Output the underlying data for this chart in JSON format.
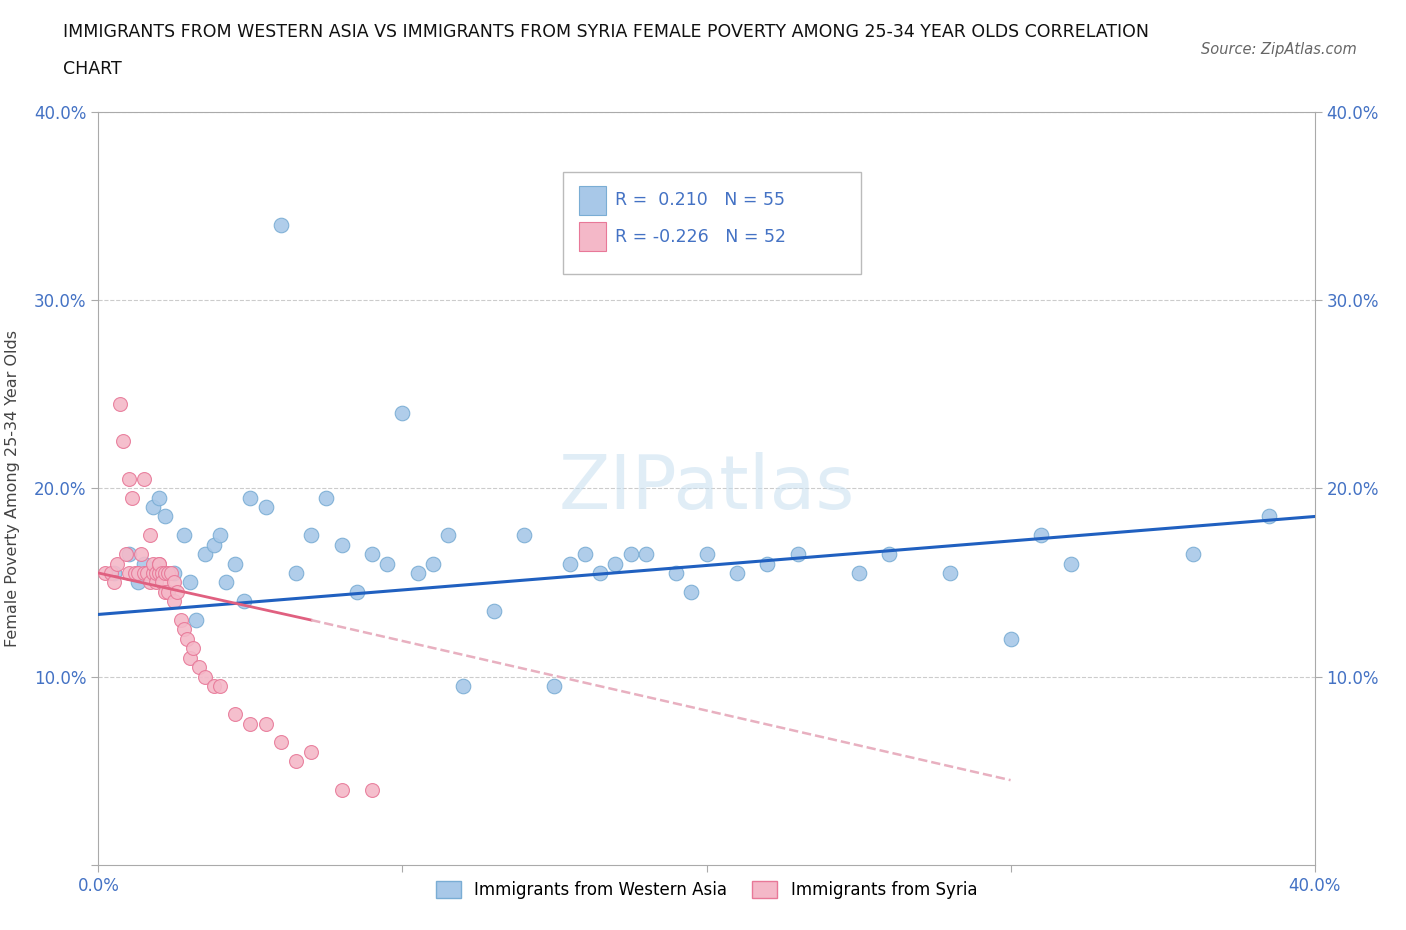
{
  "title_line1": "IMMIGRANTS FROM WESTERN ASIA VS IMMIGRANTS FROM SYRIA FEMALE POVERTY AMONG 25-34 YEAR OLDS CORRELATION",
  "title_line2": "CHART",
  "source": "Source: ZipAtlas.com",
  "ylabel": "Female Poverty Among 25-34 Year Olds",
  "xlim": [
    0.0,
    0.4
  ],
  "ylim": [
    0.0,
    0.4
  ],
  "grid_color": "#cccccc",
  "background_color": "#ffffff",
  "western_asia_color": "#a8c8e8",
  "western_asia_edge": "#7aadd4",
  "syria_color": "#f4b8c8",
  "syria_edge": "#e87898",
  "R_western": 0.21,
  "N_western": 55,
  "R_syria": -0.226,
  "N_syria": 52,
  "trend_blue": "#2060c0",
  "trend_pink_solid": "#e06080",
  "trend_pink_dash": "#e8b0c0",
  "axis_color": "#4472c4",
  "tick_label_color": "#4472c4",
  "wa_x": [
    0.005,
    0.01,
    0.013,
    0.015,
    0.018,
    0.02,
    0.022,
    0.025,
    0.028,
    0.03,
    0.032,
    0.035,
    0.038,
    0.04,
    0.042,
    0.045,
    0.048,
    0.05,
    0.055,
    0.06,
    0.065,
    0.07,
    0.075,
    0.08,
    0.085,
    0.09,
    0.095,
    0.1,
    0.105,
    0.11,
    0.115,
    0.12,
    0.13,
    0.14,
    0.15,
    0.155,
    0.16,
    0.165,
    0.17,
    0.175,
    0.18,
    0.19,
    0.195,
    0.2,
    0.21,
    0.22,
    0.23,
    0.25,
    0.26,
    0.28,
    0.3,
    0.31,
    0.32,
    0.36,
    0.385
  ],
  "wa_y": [
    0.155,
    0.165,
    0.15,
    0.16,
    0.19,
    0.195,
    0.185,
    0.155,
    0.175,
    0.15,
    0.13,
    0.165,
    0.17,
    0.175,
    0.15,
    0.16,
    0.14,
    0.195,
    0.19,
    0.34,
    0.155,
    0.175,
    0.195,
    0.17,
    0.145,
    0.165,
    0.16,
    0.24,
    0.155,
    0.16,
    0.175,
    0.095,
    0.135,
    0.175,
    0.095,
    0.16,
    0.165,
    0.155,
    0.16,
    0.165,
    0.165,
    0.155,
    0.145,
    0.165,
    0.155,
    0.16,
    0.165,
    0.155,
    0.165,
    0.155,
    0.12,
    0.175,
    0.16,
    0.165,
    0.185
  ],
  "sy_x": [
    0.002,
    0.004,
    0.005,
    0.006,
    0.007,
    0.008,
    0.009,
    0.01,
    0.01,
    0.011,
    0.012,
    0.013,
    0.014,
    0.015,
    0.015,
    0.016,
    0.017,
    0.017,
    0.018,
    0.018,
    0.019,
    0.019,
    0.02,
    0.02,
    0.02,
    0.021,
    0.021,
    0.022,
    0.022,
    0.023,
    0.023,
    0.024,
    0.025,
    0.025,
    0.026,
    0.027,
    0.028,
    0.029,
    0.03,
    0.031,
    0.033,
    0.035,
    0.038,
    0.04,
    0.045,
    0.05,
    0.055,
    0.06,
    0.065,
    0.07,
    0.08,
    0.09
  ],
  "sy_y": [
    0.155,
    0.155,
    0.15,
    0.16,
    0.245,
    0.225,
    0.165,
    0.205,
    0.155,
    0.195,
    0.155,
    0.155,
    0.165,
    0.155,
    0.205,
    0.155,
    0.15,
    0.175,
    0.155,
    0.16,
    0.15,
    0.155,
    0.16,
    0.155,
    0.16,
    0.155,
    0.15,
    0.155,
    0.145,
    0.155,
    0.145,
    0.155,
    0.15,
    0.14,
    0.145,
    0.13,
    0.125,
    0.12,
    0.11,
    0.115,
    0.105,
    0.1,
    0.095,
    0.095,
    0.08,
    0.075,
    0.075,
    0.065,
    0.055,
    0.06,
    0.04,
    0.04
  ],
  "trend_wa_x0": 0.0,
  "trend_wa_x1": 0.4,
  "trend_wa_y0": 0.133,
  "trend_wa_y1": 0.185,
  "trend_sy_x0": 0.0,
  "trend_sy_x1": 0.3,
  "trend_sy_y0": 0.155,
  "trend_sy_y1": 0.045
}
